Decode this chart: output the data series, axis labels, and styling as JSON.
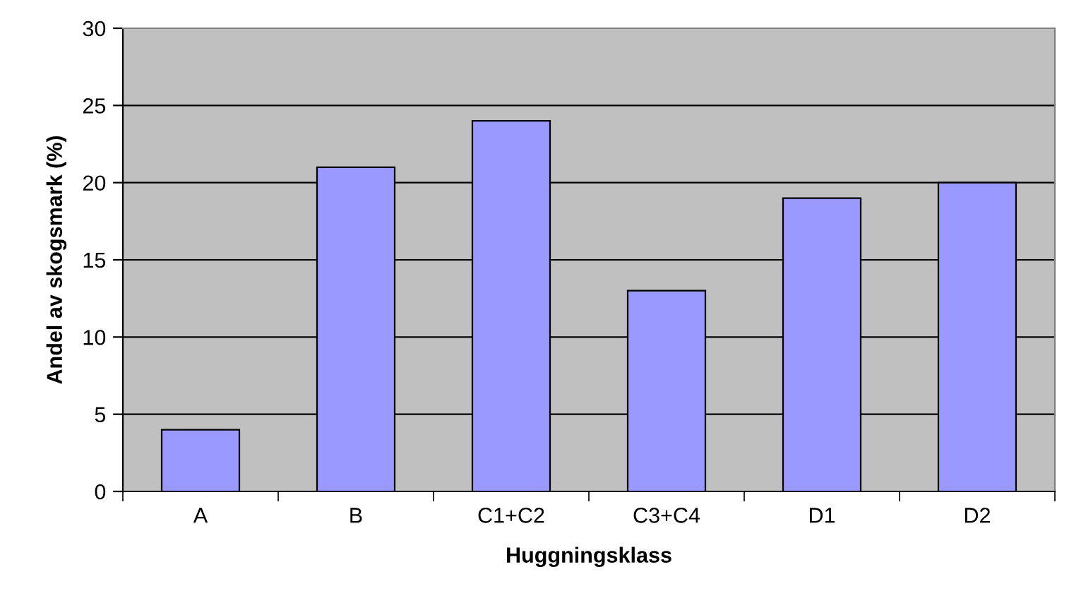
{
  "chart_data": {
    "type": "bar",
    "xlabel": "Huggningsklass",
    "ylabel": "Andel av skogsmark (%)",
    "categories": [
      "A",
      "B",
      "C1+C2",
      "C3+C4",
      "D1",
      "D2"
    ],
    "values": [
      4,
      21,
      24,
      13,
      19,
      20
    ],
    "color": "#9999ff",
    "ylim": [
      0,
      30
    ],
    "yticks": [
      0,
      5,
      10,
      15,
      20,
      25,
      30
    ],
    "grid": "y",
    "legend": false
  }
}
